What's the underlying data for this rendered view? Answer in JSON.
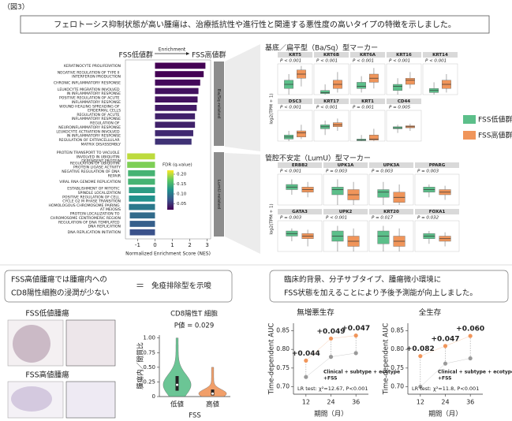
{
  "figure_label": "（図3）",
  "headline": "フェロトーシス抑制状態が高い腫瘍は、治療抵抗性や進行性と関連する悪性度の高いタイプの特徴を示しました。",
  "cd8_heading": {
    "line1": "FSS高値腫瘍では腫瘍内への",
    "line2": "CD8陽性細胞の浸潤が少ない",
    "equals": "＝",
    "conclusion": "免疫排除型を示唆"
  },
  "cd8_images": {
    "low": "FSS低値腫瘍",
    "high": "FSS高値腫瘍"
  },
  "prognosis_heading": {
    "line1": "臨床的背景、分子サブタイプ、腫瘍微小環境に",
    "line2": "FSS状態を加えることにより予後予測能が向上しました。"
  },
  "box_legend": [
    {
      "name": "FSS低値群",
      "color": "#5cbf8a"
    },
    {
      "name": "FSS高値群",
      "color": "#f0955a"
    }
  ],
  "chart_data": [
    {
      "type": "bar",
      "label_low": "FSS低値群",
      "label_arrow": "Enrichment",
      "label_high": "FSS高値群",
      "groups": [
        {
          "name": "Ba/Sq-related",
          "categories": [
            "KERATINOCYTE PROLIFERATION",
            "NEGATIVE REGULATION OF TYPE II INTERFERON PRODUCTION",
            "CHRONIC INFLAMMATORY RESPONSE",
            "LEUKOCYTE MIGRATION INVOLVED IN INFLAMMATORY RESPONSE",
            "POSITIVE REGULATION OF ACUTE INFLAMMATORY RESPONSE",
            "WOUND HEALING SPREADING OF EPIDERMAL CELLS",
            "REGULATION OF ACUTE INFLAMMATORY RESPONSE",
            "REGULATION OF NEUROINFLAMMATORY RESPONSE",
            "LEUKOCYTE ACTIVATION INVOLVED IN INFLAMMATORY RESPONSE",
            "REGULATION OF EXTRACELLULAR MATRIX DISASSEMBLY"
          ],
          "values": [
            2.9,
            2.8,
            2.6,
            2.5,
            2.45,
            2.4,
            2.3,
            2.3,
            2.2,
            2.1
          ],
          "fdr": [
            0.02,
            0.02,
            0.025,
            0.03,
            0.03,
            0.035,
            0.04,
            0.04,
            0.045,
            0.05
          ]
        },
        {
          "name": "LumU-related",
          "categories": [
            "PROTEIN TRANSPORT TO VACUOLE INVOLVED IN UBIQUITIN DEPENDENT PROTEIN",
            "REGULATION OF UBIQUITIN PROTEIN LIGASE ACTIVITY",
            "NEGATIVE REGULATION OF DNA REPAIR",
            "VIRAL RNA GENOME REPLICATION",
            "ESTABLISHMENT OF MITOTIC SPINDLE LOCALIZATION",
            "POSITIVE REGULATION OF CELL CYCLE G2 M PHASE TRANSITION",
            "HOMOLOGOUS CHROMOSOME PAIRING AT MEIOSIS",
            "PROTEIN LOCALIZATION TO CHROMOSOME CENTROMERIC REGION",
            "REGULATION OF DNA TEMPLATED DNA REPLICATION",
            "DNA REPLICATION INITIATION"
          ],
          "values": [
            -1.6,
            -1.6,
            -1.55,
            -1.55,
            -1.5,
            -1.5,
            -1.5,
            -1.45,
            -1.45,
            -1.45
          ],
          "fdr": [
            0.2,
            0.18,
            0.15,
            0.15,
            0.13,
            0.12,
            0.1,
            0.09,
            0.08,
            0.07
          ]
        }
      ],
      "xlabel": "Normalized Enrichment Score (NES)",
      "xlim": [
        -1.7,
        3.2
      ],
      "xticks": [
        -1,
        0,
        1,
        2,
        3
      ],
      "colorbar": {
        "title": "FDR (q-value)",
        "clim": [
          0.02,
          0.22
        ],
        "ticks": [
          {
            "value": 0.2,
            "label": "0.20"
          },
          0.15,
          {
            "value": 0.1,
            "label": "0.10"
          },
          0.05
        ]
      }
    },
    {
      "type": "box",
      "title": "基底／扁平型（Ba/Sq）型マーカー",
      "ylabel": "log2(TPM + 1)",
      "ylim": [
        0,
        15
      ],
      "per_row": 5,
      "markers": [
        {
          "name": "KRT5",
          "p": "P < 0.001",
          "low": {
            "min": 0,
            "q1": 3,
            "median": 5,
            "q3": 7,
            "max": 10
          },
          "high": {
            "min": 4,
            "q1": 8,
            "median": 10,
            "q3": 12,
            "max": 14
          }
        },
        {
          "name": "KRT6B",
          "p": "P < 0.001",
          "low": {
            "min": 0,
            "q1": 0.5,
            "median": 1,
            "q3": 2,
            "max": 5
          },
          "high": {
            "min": 1,
            "q1": 3,
            "median": 5,
            "q3": 7,
            "max": 11
          }
        },
        {
          "name": "KRT6A",
          "p": "P < 0.001",
          "low": {
            "min": 1,
            "q1": 3,
            "median": 4,
            "q3": 6,
            "max": 9
          },
          "high": {
            "min": 3,
            "q1": 6,
            "median": 8,
            "q3": 10,
            "max": 13
          }
        },
        {
          "name": "KRT16",
          "p": "P < 0.001",
          "low": {
            "min": 0,
            "q1": 2,
            "median": 4,
            "q3": 5,
            "max": 8
          },
          "high": {
            "min": 3,
            "q1": 5,
            "median": 7,
            "q3": 8,
            "max": 11
          }
        },
        {
          "name": "KRT14",
          "p": "P < 0.001",
          "low": {
            "min": 0,
            "q1": 1,
            "median": 2,
            "q3": 3,
            "max": 6
          },
          "high": {
            "min": 1,
            "q1": 3,
            "median": 5,
            "q3": 7,
            "max": 10
          }
        },
        {
          "name": "DSC3",
          "p": "P < 0.001",
          "low": {
            "min": 0,
            "q1": 1,
            "median": 2,
            "q3": 3,
            "max": 5
          },
          "high": {
            "min": 1,
            "q1": 2,
            "median": 4,
            "q3": 5,
            "max": 8
          }
        },
        {
          "name": "KRT17",
          "p": "P < 0.001",
          "low": {
            "min": 3,
            "q1": 6,
            "median": 7,
            "q3": 8,
            "max": 10
          },
          "high": {
            "min": 5,
            "q1": 7,
            "median": 8,
            "q3": 9,
            "max": 11
          }
        },
        {
          "name": "KRT1",
          "p": "P = 0.001",
          "low": {
            "min": 0,
            "q1": 0.2,
            "median": 0.5,
            "q3": 1,
            "max": 3
          },
          "high": {
            "min": 0,
            "q1": 0.5,
            "median": 1,
            "q3": 3,
            "max": 6
          }
        },
        {
          "name": "CD44",
          "p": "P = 0.005",
          "low": {
            "min": 4,
            "q1": 6,
            "median": 6.5,
            "q3": 7,
            "max": 8
          },
          "high": {
            "min": 5,
            "q1": 6.5,
            "median": 7,
            "q3": 7.5,
            "max": 8.5
          }
        }
      ]
    },
    {
      "type": "box",
      "title": "管腔不安定（LumU）型マーカー",
      "ylabel": "log2(TPM + 1)",
      "ylim": [
        0,
        12
      ],
      "per_row": 4,
      "markers": [
        {
          "name": "ERBB2",
          "p": "P < 0.001",
          "low": {
            "min": 4,
            "q1": 6,
            "median": 7,
            "q3": 8,
            "max": 10
          },
          "high": {
            "min": 3,
            "q1": 5,
            "median": 6,
            "q3": 7,
            "max": 9
          }
        },
        {
          "name": "UPK1A",
          "p": "P = 0.003",
          "low": {
            "min": 0,
            "q1": 4,
            "median": 6,
            "q3": 7,
            "max": 10
          },
          "high": {
            "min": 0,
            "q1": 2,
            "median": 4,
            "q3": 6,
            "max": 9
          }
        },
        {
          "name": "UPK3A",
          "p": "P = 0.003",
          "low": {
            "min": 0,
            "q1": 3,
            "median": 5,
            "q3": 6,
            "max": 9
          },
          "high": {
            "min": 0,
            "q1": 1,
            "median": 3,
            "q3": 5,
            "max": 8
          }
        },
        {
          "name": "PPARG",
          "p": "P = 0.003",
          "low": {
            "min": 3,
            "q1": 5,
            "median": 6,
            "q3": 7,
            "max": 8
          },
          "high": {
            "min": 2,
            "q1": 4,
            "median": 5,
            "q3": 6,
            "max": 7.5
          }
        },
        {
          "name": "GATA3",
          "p": "P = 0.003",
          "low": {
            "min": 4,
            "q1": 6,
            "median": 7,
            "q3": 8,
            "max": 9
          },
          "high": {
            "min": 2,
            "q1": 5,
            "median": 6,
            "q3": 7,
            "max": 8.5
          }
        },
        {
          "name": "UPK2",
          "p": "P < 0.001",
          "low": {
            "min": 0,
            "q1": 4,
            "median": 6,
            "q3": 8,
            "max": 10
          },
          "high": {
            "min": 0,
            "q1": 2,
            "median": 4,
            "q3": 6,
            "max": 9
          }
        },
        {
          "name": "KRT20",
          "p": "P = 0.017",
          "low": {
            "min": 0,
            "q1": 3,
            "median": 6,
            "q3": 8,
            "max": 10
          },
          "high": {
            "min": 0,
            "q1": 2,
            "median": 4,
            "q3": 6,
            "max": 9
          }
        },
        {
          "name": "FOXA1",
          "p": "P = 0.032",
          "low": {
            "min": 3,
            "q1": 5,
            "median": 6,
            "q3": 7,
            "max": 8
          },
          "high": {
            "min": 2,
            "q1": 4,
            "median": 5,
            "q3": 6,
            "max": 7.5
          }
        }
      ]
    },
    {
      "type": "violin",
      "title": "CD8陽性T 細胞",
      "p_label": "P値 = 0.029",
      "ylabel": "腫瘍内／間質比",
      "xlabel": "FSS",
      "categories": [
        "低値",
        "高値"
      ],
      "colors": [
        "#5cbf8a",
        "#f0955a"
      ],
      "stats": [
        {
          "q1": 0.1,
          "median": 0.2,
          "q3": 0.35,
          "max": 1.0
        },
        {
          "q1": 0.02,
          "median": 0.05,
          "q3": 0.12,
          "max": 0.5
        }
      ],
      "ylim": [
        0,
        1.05
      ],
      "yticks": [
        0,
        0.25,
        {
          "value": 0.5,
          "label": "0.50"
        },
        0.75,
        {
          "value": 1,
          "label": "1.00"
        }
      ]
    },
    {
      "type": "line",
      "title": "無増悪生存",
      "ylabel": "Time-dependent AUC",
      "xlabel": "期間（月）",
      "x": [
        12,
        24,
        36
      ],
      "xlim": [
        6,
        42
      ],
      "xticks": [
        12,
        24,
        36
      ],
      "ylim": [
        0.68,
        0.87
      ],
      "yticks": [
        {
          "value": 0.7,
          "label": "0.70"
        },
        0.75,
        {
          "value": 0.8,
          "label": "0.80"
        },
        0.85
      ],
      "series": [
        {
          "name": "Clinical + subtype + ecotype",
          "color": "#9a9a9a",
          "values": [
            0.726,
            0.78,
            0.79
          ]
        },
        {
          "name": "+FSS",
          "color": "#f0955a",
          "values": [
            0.77,
            0.829,
            0.837
          ]
        }
      ],
      "annotations": [
        "+0.044",
        "+0.049",
        "+0.047"
      ],
      "lr_test": "LR test: χ²=12.67, P<0.001"
    },
    {
      "type": "line",
      "title": "全生存",
      "ylabel": "Time-dependent AUC",
      "xlabel": "期間（月）",
      "x": [
        12,
        24,
        36
      ],
      "xlim": [
        6,
        42
      ],
      "xticks": [
        12,
        24,
        36
      ],
      "ylim": [
        0.68,
        0.87
      ],
      "yticks": [
        {
          "value": 0.7,
          "label": "0.70"
        },
        0.75,
        {
          "value": 0.8,
          "label": "0.80"
        },
        0.85
      ],
      "series": [
        {
          "name": "Clinical + subtype + ecotype",
          "color": "#9a9a9a",
          "values": [
            0.7,
            0.762,
            0.776
          ]
        },
        {
          "name": "+FSS",
          "color": "#f0955a",
          "values": [
            0.782,
            0.809,
            0.836
          ]
        }
      ],
      "annotations": [
        "+0.082",
        "+0.047",
        "+0.060"
      ],
      "lr_test": "LR test: χ²=11.8, P<0.001"
    }
  ]
}
